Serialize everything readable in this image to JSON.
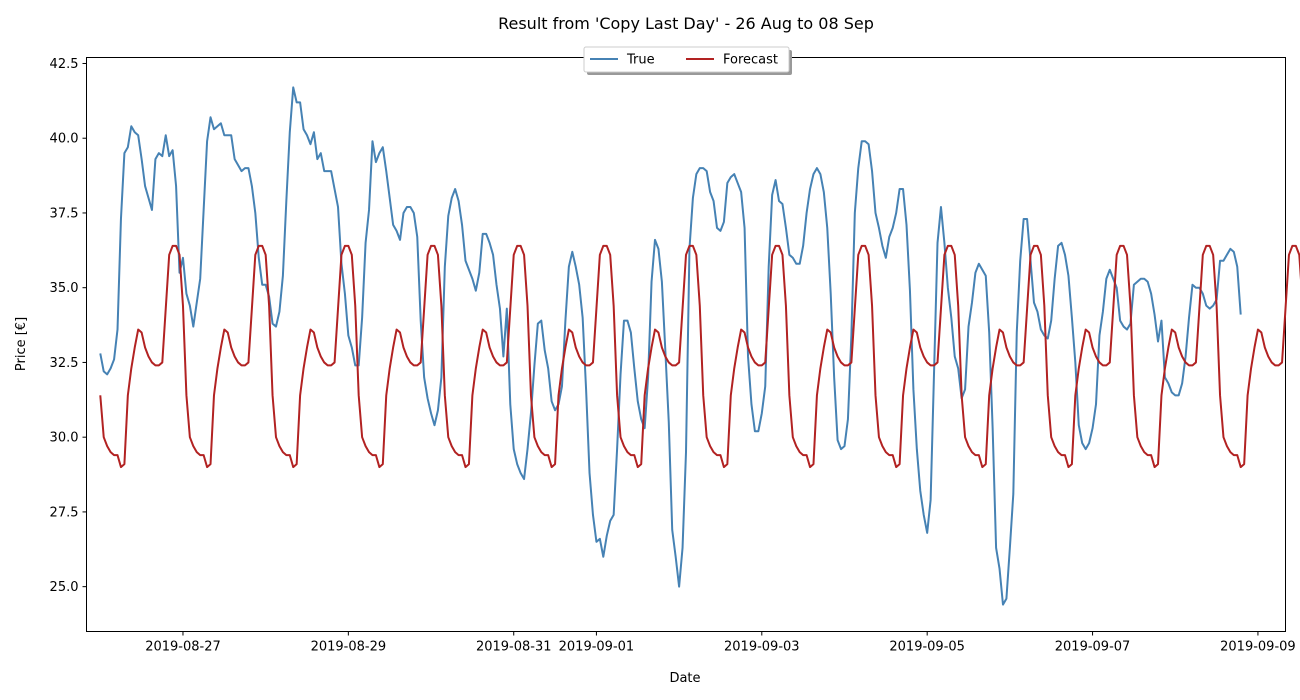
{
  "chart_data": {
    "type": "line",
    "title": "Result from 'Copy Last Day' - 26 Aug to 08 Sep",
    "xlabel": "Date",
    "ylabel": "Price [€]",
    "xlim": [
      "2019-08-25T20:00",
      "2019-09-09T08:00"
    ],
    "ylim": [
      23.5,
      42.7
    ],
    "x_tick_labels": [
      "2019-08-27",
      "2019-08-29",
      "2019-08-31",
      "2019-09-01",
      "2019-09-03",
      "2019-09-05",
      "2019-09-07",
      "2019-09-09"
    ],
    "y_ticks": [
      25.0,
      27.5,
      30.0,
      32.5,
      35.0,
      37.5,
      40.0,
      42.5
    ],
    "y_tick_labels": [
      "25.0",
      "27.5",
      "30.0",
      "32.5",
      "35.0",
      "37.5",
      "40.0",
      "42.5"
    ],
    "x_start": "2019-08-26T00:00",
    "x_step_hours": 1,
    "grid": false,
    "legend_position": "top-center",
    "series": [
      {
        "name": "True",
        "color": "#4682b4",
        "values": [
          32.8,
          32.2,
          32.1,
          32.3,
          32.6,
          33.6,
          37.3,
          39.5,
          39.7,
          40.4,
          40.2,
          40.1,
          39.3,
          38.4,
          38.0,
          37.6,
          39.3,
          39.5,
          39.4,
          40.1,
          39.4,
          39.6,
          38.4,
          35.5,
          36.0,
          34.8,
          34.4,
          33.7,
          34.5,
          35.3,
          37.6,
          39.9,
          40.7,
          40.3,
          40.4,
          40.5,
          40.1,
          40.1,
          40.1,
          39.3,
          39.1,
          38.9,
          39.0,
          39.0,
          38.4,
          37.5,
          36.0,
          35.1,
          35.1,
          34.7,
          33.8,
          33.7,
          34.2,
          35.4,
          37.9,
          40.2,
          41.7,
          41.2,
          41.2,
          40.3,
          40.1,
          39.8,
          40.2,
          39.3,
          39.5,
          38.9,
          38.9,
          38.9,
          38.3,
          37.7,
          35.8,
          34.8,
          33.4,
          33.0,
          32.4,
          32.4,
          34.0,
          36.5,
          37.6,
          39.9,
          39.2,
          39.5,
          39.7,
          38.9,
          38.0,
          37.1,
          36.9,
          36.6,
          37.5,
          37.7,
          37.7,
          37.5,
          36.7,
          33.9,
          32.0,
          31.3,
          30.8,
          30.4,
          30.9,
          32.0,
          35.7,
          37.4,
          38.0,
          38.3,
          37.9,
          37.1,
          35.9,
          35.6,
          35.3,
          34.9,
          35.5,
          36.8,
          36.8,
          36.5,
          36.1,
          35.1,
          34.3,
          32.7,
          34.3,
          31.1,
          29.6,
          29.1,
          28.8,
          28.6,
          29.6,
          30.8,
          32.4,
          33.8,
          33.9,
          32.9,
          32.3,
          31.2,
          30.9,
          31.1,
          31.7,
          33.9,
          35.7,
          36.2,
          35.7,
          35.1,
          34.0,
          31.6,
          28.8,
          27.4,
          26.5,
          26.6,
          26.0,
          26.7,
          27.2,
          27.4,
          29.6,
          32.1,
          33.9,
          33.9,
          33.5,
          32.3,
          31.2,
          30.6,
          30.3,
          32.0,
          35.2,
          36.6,
          36.3,
          35.2,
          32.9,
          30.5,
          26.9,
          26.0,
          25.0,
          26.3,
          29.5,
          36.3,
          38.0,
          38.8,
          39.0,
          39.0,
          38.9,
          38.2,
          37.9,
          37.0,
          36.9,
          37.2,
          38.5,
          38.7,
          38.8,
          38.5,
          38.2,
          37.0,
          32.7,
          31.1,
          30.2,
          30.2,
          30.8,
          31.7,
          35.7,
          38.1,
          38.6,
          37.9,
          37.8,
          37.0,
          36.1,
          36.0,
          35.8,
          35.8,
          36.4,
          37.5,
          38.3,
          38.8,
          39.0,
          38.8,
          38.2,
          37.0,
          34.8,
          32.0,
          29.9,
          29.6,
          29.7,
          30.6,
          33.4,
          37.5,
          39.0,
          39.9,
          39.9,
          39.8,
          38.9,
          37.5,
          37.0,
          36.4,
          36.0,
          36.7,
          37.0,
          37.5,
          38.3,
          38.3,
          37.1,
          34.9,
          31.6,
          29.6,
          28.2,
          27.4,
          26.8,
          27.9,
          32.2,
          36.5,
          37.7,
          36.5,
          35.0,
          34.0,
          32.7,
          32.3,
          31.3,
          31.6,
          33.7,
          34.5,
          35.5,
          35.8,
          35.6,
          35.4,
          33.5,
          30.3,
          26.3,
          25.6,
          24.4,
          24.6,
          26.3,
          28.1,
          33.5,
          35.9,
          37.3,
          37.3,
          35.9,
          34.5,
          34.2,
          33.6,
          33.4,
          33.3,
          33.9,
          35.3,
          36.4,
          36.5,
          36.1,
          35.4,
          34.0,
          32.5,
          30.4,
          29.8,
          29.6,
          29.8,
          30.3,
          31.1,
          33.4,
          34.2,
          35.3,
          35.6,
          35.3,
          35.0,
          33.9,
          33.7,
          33.6,
          33.8,
          35.1,
          35.2,
          35.3,
          35.3,
          35.2,
          34.8,
          34.1,
          33.2,
          33.9,
          32.0,
          31.8,
          31.5,
          31.4,
          31.4,
          31.8,
          32.7,
          34.0,
          35.1,
          35.0,
          35.0,
          34.8,
          34.4,
          34.3,
          34.4,
          34.6,
          35.9,
          35.9,
          36.1,
          36.3,
          36.2,
          35.7,
          34.1
        ]
      },
      {
        "name": "Forecast",
        "color": "#b22222",
        "values": [
          31.4,
          30.0,
          29.7,
          29.5,
          29.4,
          29.4,
          29.0,
          29.1,
          31.4,
          32.3,
          33.0,
          33.6,
          33.5,
          33.0,
          32.7,
          32.5,
          32.4,
          32.4,
          32.5,
          34.3,
          36.1,
          36.4,
          36.4,
          36.1,
          34.4,
          31.4,
          30.0,
          29.7,
          29.5,
          29.4,
          29.4,
          29.0,
          29.1,
          31.4,
          32.3,
          33.0,
          33.6,
          33.5,
          33.0,
          32.7,
          32.5,
          32.4,
          32.4,
          32.5,
          34.3,
          36.1,
          36.4,
          36.4,
          36.1,
          34.4,
          31.4,
          30.0,
          29.7,
          29.5,
          29.4,
          29.4,
          29.0,
          29.1,
          31.4,
          32.3,
          33.0,
          33.6,
          33.5,
          33.0,
          32.7,
          32.5,
          32.4,
          32.4,
          32.5,
          34.3,
          36.1,
          36.4,
          36.4,
          36.1,
          34.4,
          31.4,
          30.0,
          29.7,
          29.5,
          29.4,
          29.4,
          29.0,
          29.1,
          31.4,
          32.3,
          33.0,
          33.6,
          33.5,
          33.0,
          32.7,
          32.5,
          32.4,
          32.4,
          32.5,
          34.3,
          36.1,
          36.4,
          36.4,
          36.1,
          34.4,
          31.4,
          30.0,
          29.7,
          29.5,
          29.4,
          29.4,
          29.0,
          29.1,
          31.4,
          32.3,
          33.0,
          33.6,
          33.5,
          33.0,
          32.7,
          32.5,
          32.4,
          32.4,
          32.5,
          34.3,
          36.1,
          36.4,
          36.4,
          36.1,
          34.4,
          31.4,
          30.0,
          29.7,
          29.5,
          29.4,
          29.4,
          29.0,
          29.1,
          31.4,
          32.3,
          33.0,
          33.6,
          33.5,
          33.0,
          32.7,
          32.5,
          32.4,
          32.4,
          32.5,
          34.3,
          36.1,
          36.4,
          36.4,
          36.1,
          34.4,
          31.4,
          30.0,
          29.7,
          29.5,
          29.4,
          29.4,
          29.0,
          29.1,
          31.4,
          32.3,
          33.0,
          33.6,
          33.5,
          33.0,
          32.7,
          32.5,
          32.4,
          32.4,
          32.5,
          34.3,
          36.1,
          36.4,
          36.4,
          36.1,
          34.4,
          31.4,
          30.0,
          29.7,
          29.5,
          29.4,
          29.4,
          29.0,
          29.1,
          31.4,
          32.3,
          33.0,
          33.6,
          33.5,
          33.0,
          32.7,
          32.5,
          32.4,
          32.4,
          32.5,
          34.3,
          36.1,
          36.4,
          36.4,
          36.1,
          34.4,
          31.4,
          30.0,
          29.7,
          29.5,
          29.4,
          29.4,
          29.0,
          29.1,
          31.4,
          32.3,
          33.0,
          33.6,
          33.5,
          33.0,
          32.7,
          32.5,
          32.4,
          32.4,
          32.5,
          34.3,
          36.1,
          36.4,
          36.4,
          36.1,
          34.4,
          31.4,
          30.0,
          29.7,
          29.5,
          29.4,
          29.4,
          29.0,
          29.1,
          31.4,
          32.3,
          33.0,
          33.6,
          33.5,
          33.0,
          32.7,
          32.5,
          32.4,
          32.4,
          32.5,
          34.3,
          36.1,
          36.4,
          36.4,
          36.1,
          34.4,
          31.4,
          30.0,
          29.7,
          29.5,
          29.4,
          29.4,
          29.0,
          29.1,
          31.4,
          32.3,
          33.0,
          33.6,
          33.5,
          33.0,
          32.7,
          32.5,
          32.4,
          32.4,
          32.5,
          34.3,
          36.1,
          36.4,
          36.4,
          36.1,
          34.4,
          31.4,
          30.0,
          29.7,
          29.5,
          29.4,
          29.4,
          29.0,
          29.1,
          31.4,
          32.3,
          33.0,
          33.6,
          33.5,
          33.0,
          32.7,
          32.5,
          32.4,
          32.4,
          32.5,
          34.3,
          36.1,
          36.4,
          36.4,
          36.1,
          34.4,
          31.4,
          30.0,
          29.7,
          29.5,
          29.4,
          29.4,
          29.0,
          29.1,
          31.4,
          32.3,
          33.0,
          33.6,
          33.5,
          33.0,
          32.7,
          32.5,
          32.4,
          32.4,
          32.5,
          34.3,
          36.1,
          36.4,
          36.4,
          36.1,
          34.4,
          31.4,
          30.0,
          29.7,
          29.5,
          29.4,
          29.4,
          29.0,
          29.1,
          31.4,
          32.3,
          33.0,
          33.6,
          33.5,
          33.0,
          32.7,
          32.5,
          32.4,
          32.4,
          32.5,
          34.3,
          36.1,
          36.4,
          36.4,
          36.1,
          34.4,
          33.3
        ]
      }
    ]
  }
}
